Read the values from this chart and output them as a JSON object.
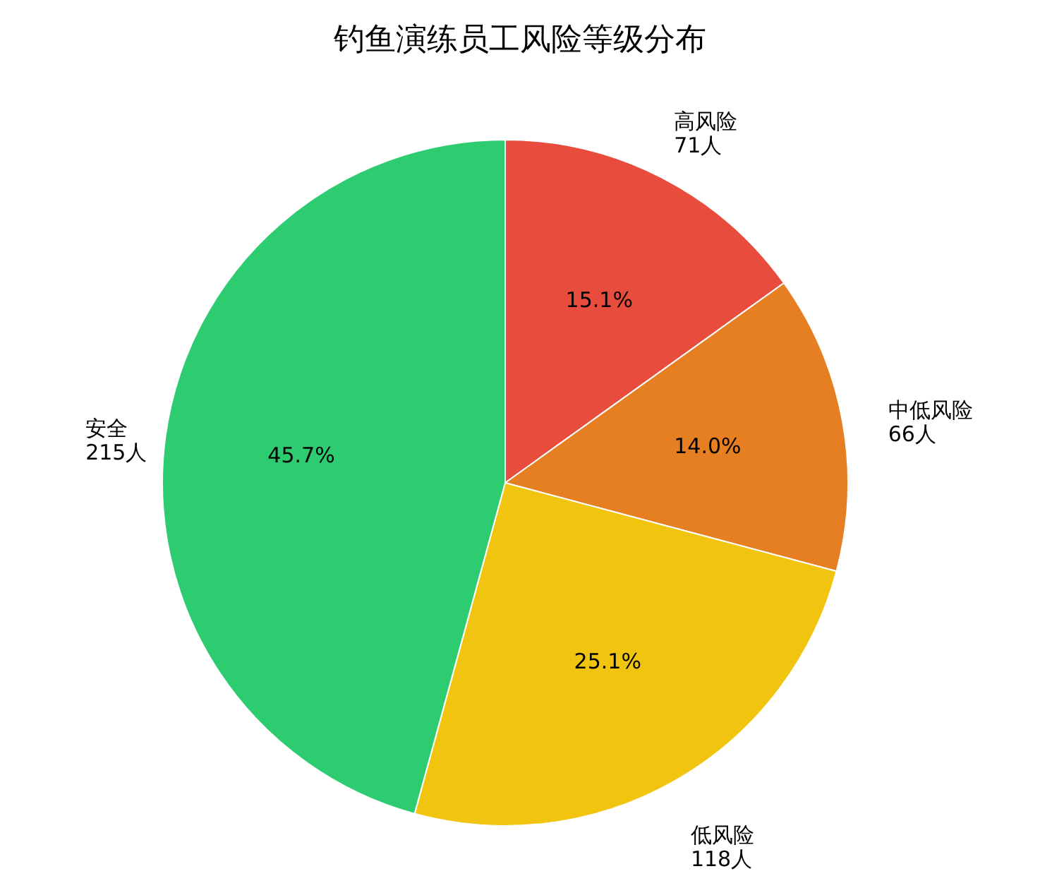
{
  "chart_data": {
    "type": "pie",
    "title": "钓鱼演练员工风险等级分布",
    "categories": [
      "高风险",
      "中低风险",
      "低风险",
      "安全"
    ],
    "values": [
      71,
      66,
      118,
      215
    ],
    "colors": [
      "#e74c3c",
      "#e67e22",
      "#f1c40f",
      "#2ecc71"
    ],
    "value_labels": [
      "71人",
      "66人",
      "118人",
      "215人"
    ],
    "annotations": [
      {
        "text": "15.1%",
        "x": "高风险"
      },
      {
        "text": "14.0%",
        "x": "中低风险"
      },
      {
        "text": "25.1%",
        "x": "低风险"
      },
      {
        "text": "45.7%",
        "x": "安全"
      }
    ]
  }
}
